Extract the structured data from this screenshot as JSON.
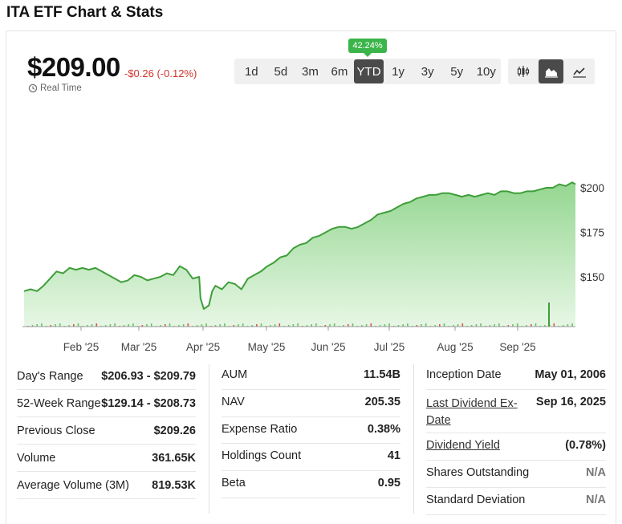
{
  "title": "ITA ETF Chart & Stats",
  "quote": {
    "price": "$209.00",
    "change": "-$0.26 (-0.12%)",
    "realtime_label": "Real Time"
  },
  "ranges": {
    "ytd_badge": "42.24%",
    "buttons": [
      "1d",
      "5d",
      "3m",
      "6m",
      "YTD",
      "1y",
      "3y",
      "5y",
      "10y"
    ],
    "active": "YTD"
  },
  "chart_types": [
    {
      "name": "candlestick-icon",
      "active": false
    },
    {
      "name": "area-chart-icon",
      "active": true
    },
    {
      "name": "line-chart-icon",
      "active": false
    }
  ],
  "colors": {
    "accent_green": "#3bb54a",
    "line_green": "#3f9e3a",
    "negative_red": "#d0342c",
    "active_button": "#4a4a4a"
  },
  "chart_data": {
    "type": "area",
    "x_tick_labels": [
      "Feb '25",
      "Mar '25",
      "Apr '25",
      "May '25",
      "Jun '25",
      "Jul '25",
      "Aug '25",
      "Sep '25"
    ],
    "y_tick_labels": [
      "$200",
      "$175",
      "$150"
    ],
    "y_ticks": [
      200,
      175,
      150
    ],
    "ylim": [
      122,
      208
    ],
    "x_range": [
      0,
      8.5
    ],
    "series": [
      {
        "points": [
          [
            0,
            142
          ],
          [
            0.1,
            143
          ],
          [
            0.2,
            142
          ],
          [
            0.3,
            145
          ],
          [
            0.4,
            149
          ],
          [
            0.5,
            153
          ],
          [
            0.6,
            152
          ],
          [
            0.7,
            155
          ],
          [
            0.8,
            154
          ],
          [
            0.9,
            155
          ],
          [
            1.0,
            154
          ],
          [
            1.1,
            155
          ],
          [
            1.2,
            153
          ],
          [
            1.3,
            151
          ],
          [
            1.4,
            149
          ],
          [
            1.5,
            147
          ],
          [
            1.6,
            148
          ],
          [
            1.7,
            151
          ],
          [
            1.8,
            150
          ],
          [
            1.9,
            148
          ],
          [
            2.0,
            149
          ],
          [
            2.1,
            150
          ],
          [
            2.2,
            152
          ],
          [
            2.3,
            151
          ],
          [
            2.4,
            156
          ],
          [
            2.5,
            154
          ],
          [
            2.6,
            149
          ],
          [
            2.7,
            150
          ],
          [
            2.72,
            138
          ],
          [
            2.77,
            132
          ],
          [
            2.85,
            134
          ],
          [
            2.9,
            142
          ],
          [
            2.95,
            145
          ],
          [
            3.05,
            143
          ],
          [
            3.15,
            147
          ],
          [
            3.25,
            146
          ],
          [
            3.35,
            143
          ],
          [
            3.45,
            149
          ],
          [
            3.55,
            151
          ],
          [
            3.65,
            153
          ],
          [
            3.75,
            156
          ],
          [
            3.85,
            158
          ],
          [
            3.95,
            161
          ],
          [
            4.05,
            162
          ],
          [
            4.15,
            166
          ],
          [
            4.25,
            168
          ],
          [
            4.35,
            169
          ],
          [
            4.45,
            172
          ],
          [
            4.55,
            173
          ],
          [
            4.65,
            175
          ],
          [
            4.75,
            177
          ],
          [
            4.85,
            178
          ],
          [
            4.95,
            178
          ],
          [
            5.05,
            177
          ],
          [
            5.15,
            178
          ],
          [
            5.25,
            180
          ],
          [
            5.35,
            182
          ],
          [
            5.45,
            185
          ],
          [
            5.55,
            186
          ],
          [
            5.65,
            187
          ],
          [
            5.75,
            189
          ],
          [
            5.85,
            191
          ],
          [
            5.95,
            192
          ],
          [
            6.05,
            194
          ],
          [
            6.15,
            195
          ],
          [
            6.25,
            196
          ],
          [
            6.35,
            196
          ],
          [
            6.45,
            197
          ],
          [
            6.55,
            197
          ],
          [
            6.65,
            196
          ],
          [
            6.75,
            195
          ],
          [
            6.85,
            196
          ],
          [
            6.95,
            195
          ],
          [
            7.05,
            196
          ],
          [
            7.15,
            197
          ],
          [
            7.25,
            196
          ],
          [
            7.35,
            198
          ],
          [
            7.45,
            198
          ],
          [
            7.55,
            197
          ],
          [
            7.65,
            197
          ],
          [
            7.75,
            198
          ],
          [
            7.85,
            198
          ],
          [
            7.95,
            199
          ],
          [
            8.05,
            200
          ],
          [
            8.15,
            200
          ],
          [
            8.25,
            202
          ],
          [
            8.35,
            201
          ],
          [
            8.45,
            203
          ],
          [
            8.5,
            202
          ]
        ]
      }
    ]
  },
  "stats": {
    "col1": [
      {
        "label": "Day's Range",
        "value": "$206.93 - $209.79"
      },
      {
        "label": "52-Week Range",
        "value": "$129.14 - $208.73"
      },
      {
        "label": "Previous Close",
        "value": "$209.26"
      },
      {
        "label": "Volume",
        "value": "361.65K"
      },
      {
        "label": "Average Volume (3M)",
        "value": "819.53K"
      }
    ],
    "col2": [
      {
        "label": "AUM",
        "value": "11.54B"
      },
      {
        "label": "NAV",
        "value": "205.35"
      },
      {
        "label": "Expense Ratio",
        "value": "0.38%"
      },
      {
        "label": "Holdings Count",
        "value": "41"
      },
      {
        "label": "Beta",
        "value": "0.95"
      }
    ],
    "col3": [
      {
        "label": "Inception Date",
        "value": "May 01, 2006"
      },
      {
        "label": "Last Dividend Ex-Date",
        "value": "Sep 16, 2025"
      },
      {
        "label": "Dividend Yield",
        "value": "(0.78%)"
      },
      {
        "label": "Shares Outstanding",
        "value": "N/A"
      },
      {
        "label": "Standard Deviation",
        "value": "N/A"
      }
    ]
  }
}
